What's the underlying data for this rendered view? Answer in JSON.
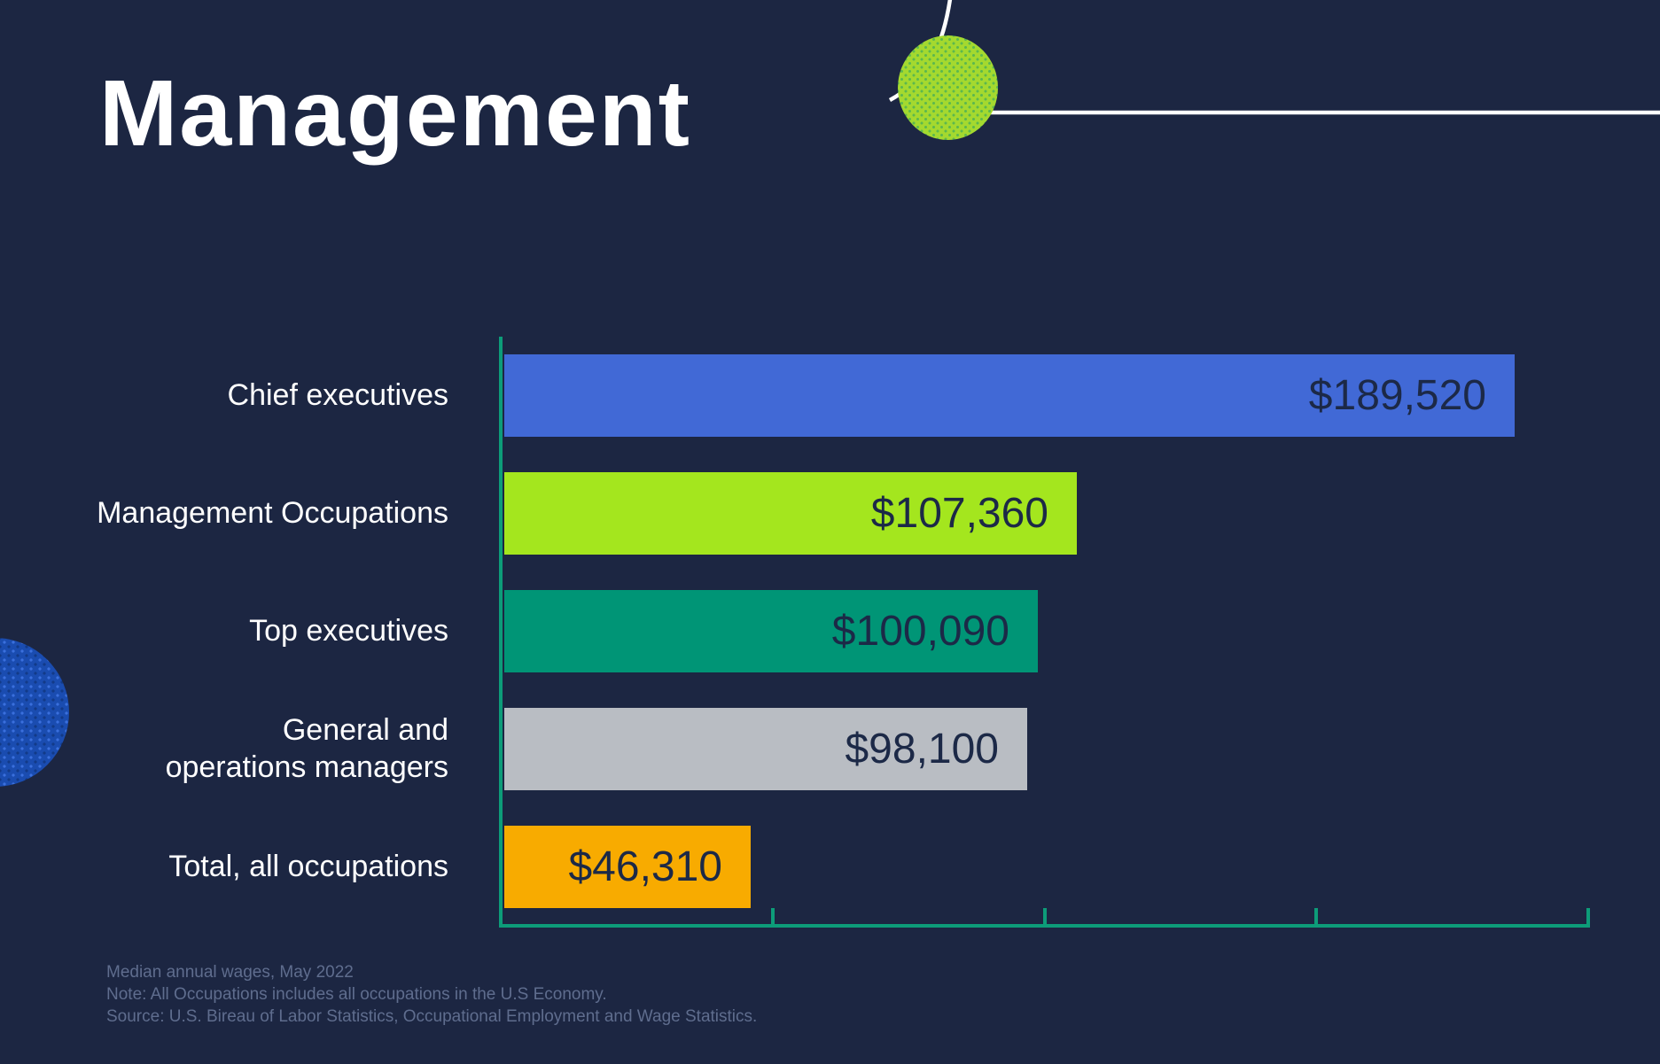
{
  "page": {
    "title": "Management"
  },
  "chart_data": {
    "type": "bar",
    "orientation": "horizontal",
    "title": "Management",
    "unit": "US dollars, median annual wage",
    "categories": [
      "Chief executives",
      "Management Occupations",
      "Top executives",
      "General and operations managers",
      "Total, all occupations"
    ],
    "display_labels": [
      "Chief executives",
      "Management Occupations",
      "Top executives",
      "General and\noperations managers",
      "Total, all occupations"
    ],
    "values": [
      189520,
      107360,
      100090,
      98100,
      46310
    ],
    "value_labels": [
      "$189,520",
      "$107,360",
      "$100,090",
      "$98,100",
      "$46,310"
    ],
    "bar_colors": [
      "#4169d6",
      "#a4e61e",
      "#009576",
      "#b9bdc3",
      "#f8ab00"
    ],
    "xlabel": "",
    "ylabel": "",
    "axis": {
      "range": [
        0,
        203700
      ],
      "tick_count": 4,
      "tick_labels_visible": false,
      "color": "#0d9c79"
    },
    "grid": false,
    "legend": "none",
    "value_label_position": "inside-end"
  },
  "footer": {
    "line1": "Median annual wages, May 2022",
    "line2": "Note: All Occupations includes all occupations in the U.S Economy.",
    "line3": "Source: U.S. Bireau of Labor Statistics, Occupational Employment and Wage Statistics."
  },
  "colors": {
    "background": "#1c2642",
    "label_text": "#ffffff",
    "value_text": "#1c2947",
    "axis": "#0d9c79",
    "footer_text": "#5f6d8e",
    "deco_green_circle": "#a4d92f",
    "deco_blue_circle": "#1a4cb0",
    "deco_line": "#ffffff"
  }
}
